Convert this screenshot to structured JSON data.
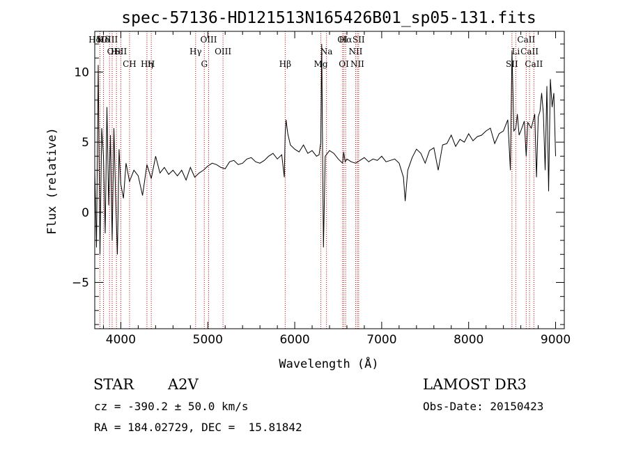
{
  "chart_data": {
    "type": "line",
    "title": "spec-57136-HD121513N165426B01_sp05-131.fits",
    "xlabel": "Wavelength (Å)",
    "ylabel": "Flux (relative)",
    "xlim": [
      3700,
      9100
    ],
    "ylim": [
      -8.3,
      12.9
    ],
    "xticks": [
      4000,
      5000,
      6000,
      7000,
      8000,
      9000
    ],
    "yticks": [
      -5,
      0,
      5,
      10
    ],
    "grid": false,
    "series": [
      {
        "x": [
          3700,
          3720,
          3740,
          3760,
          3780,
          3800,
          3820,
          3840,
          3860,
          3880,
          3900,
          3920,
          3940,
          3960,
          3980,
          4000,
          4030,
          4060,
          4100,
          4150,
          4200,
          4250,
          4300,
          4350,
          4400,
          4450,
          4500,
          4550,
          4600,
          4650,
          4700,
          4750,
          4800,
          4850,
          4900,
          4950,
          5000,
          5050,
          5100,
          5150,
          5200,
          5250,
          5300,
          5350,
          5400,
          5450,
          5500,
          5550,
          5600,
          5650,
          5700,
          5750,
          5800,
          5850,
          5880,
          5890,
          5900,
          5920,
          5950,
          6000,
          6050,
          6100,
          6150,
          6200,
          6250,
          6280,
          6300,
          6310,
          6320,
          6330,
          6350,
          6400,
          6450,
          6500,
          6550,
          6563,
          6580,
          6600,
          6650,
          6700,
          6750,
          6800,
          6850,
          6900,
          6950,
          7000,
          7050,
          7100,
          7150,
          7200,
          7250,
          7270,
          7300,
          7350,
          7400,
          7450,
          7500,
          7550,
          7600,
          7650,
          7700,
          7750,
          7800,
          7850,
          7900,
          7950,
          8000,
          8050,
          8100,
          8150,
          8200,
          8250,
          8300,
          8350,
          8400,
          8450,
          8480,
          8498,
          8520,
          8542,
          8560,
          8580,
          8600,
          8640,
          8662,
          8680,
          8720,
          8760,
          8780,
          8800,
          8820,
          8840,
          8860,
          8880,
          8900,
          8920,
          8940,
          8960,
          8980,
          9000
        ],
        "y": [
          3.0,
          -2.5,
          10.5,
          -3.0,
          6.0,
          4.0,
          -1.5,
          7.5,
          0.5,
          5.5,
          -2.0,
          6.0,
          1.0,
          -3.0,
          4.5,
          2.0,
          1.0,
          3.5,
          2.2,
          3.0,
          2.6,
          1.2,
          3.4,
          2.4,
          4.0,
          2.8,
          3.2,
          2.7,
          3.0,
          2.6,
          3.0,
          2.3,
          3.2,
          2.5,
          2.8,
          3.0,
          3.3,
          3.5,
          3.4,
          3.2,
          3.1,
          3.6,
          3.7,
          3.4,
          3.5,
          3.8,
          3.9,
          3.6,
          3.5,
          3.7,
          4.0,
          4.2,
          3.8,
          4.1,
          2.5,
          5.5,
          6.6,
          5.6,
          4.8,
          4.5,
          4.3,
          4.8,
          4.2,
          4.4,
          4.0,
          4.1,
          5.0,
          12.0,
          4.5,
          -2.5,
          4.0,
          4.4,
          4.2,
          3.8,
          3.5,
          4.3,
          3.6,
          3.8,
          3.6,
          3.5,
          3.7,
          3.9,
          3.6,
          3.8,
          3.7,
          4.0,
          3.6,
          3.7,
          3.8,
          3.5,
          2.5,
          0.8,
          3.0,
          3.9,
          4.5,
          4.2,
          3.5,
          4.4,
          4.6,
          3.0,
          4.8,
          4.9,
          5.5,
          4.7,
          5.2,
          5.0,
          5.6,
          5.1,
          5.4,
          5.5,
          5.8,
          6.0,
          4.9,
          5.6,
          5.8,
          6.6,
          3.0,
          11.5,
          5.8,
          6.0,
          7.0,
          5.5,
          5.8,
          6.5,
          4.0,
          6.4,
          6.0,
          7.0,
          2.5,
          6.8,
          7.2,
          8.5,
          7.0,
          3.0,
          9.0,
          1.5,
          9.5,
          7.5,
          8.5,
          4.0
        ]
      }
    ]
  },
  "spectral_lines": [
    {
      "label": "Hδ",
      "x": 3700,
      "row": 0
    },
    {
      "label": "K",
      "x": 3760,
      "row": 0
    },
    {
      "label": "Hδ",
      "x": 3800,
      "row": 0
    },
    {
      "label": "OIII",
      "x": 3870,
      "row": 0
    },
    {
      "label": "OI",
      "x": 3900,
      "row": 1
    },
    {
      "label": "Hε",
      "x": 3950,
      "row": 1
    },
    {
      "label": "SII",
      "x": 4000,
      "row": 1
    },
    {
      "label": "CH",
      "x": 4100,
      "row": 2
    },
    {
      "label": "Hη",
      "x": 4300,
      "row": 2
    },
    {
      "label": "H",
      "x": 4350,
      "row": 2
    },
    {
      "label": "Hγ",
      "x": 4860,
      "row": 1
    },
    {
      "label": "G",
      "x": 4960,
      "row": 2
    },
    {
      "label": "OIII",
      "x": 5010,
      "row": 0
    },
    {
      "label": "OIII",
      "x": 5175,
      "row": 1
    },
    {
      "label": "Hβ",
      "x": 5890,
      "row": 2
    },
    {
      "label": "Mg",
      "x": 6300,
      "row": 2
    },
    {
      "label": "Na",
      "x": 6365,
      "row": 1
    },
    {
      "label": "OI",
      "x": 6550,
      "row": 0
    },
    {
      "label": "OI",
      "x": 6565,
      "row": 2
    },
    {
      "label": "Hα",
      "x": 6585,
      "row": 0
    },
    {
      "label": "NII",
      "x": 6700,
      "row": 1
    },
    {
      "label": "NII",
      "x": 6720,
      "row": 2
    },
    {
      "label": "SII",
      "x": 6735,
      "row": 0
    },
    {
      "label": "SII",
      "x": 8498,
      "row": 2
    },
    {
      "label": "Li",
      "x": 8542,
      "row": 1
    },
    {
      "label": "CaII",
      "x": 8662,
      "row": 0
    },
    {
      "label": "CaII",
      "x": 8700,
      "row": 1
    },
    {
      "label": "CaII",
      "x": 8750,
      "row": 2
    }
  ],
  "info": {
    "object_type": "STAR",
    "subclass": "A2V",
    "survey": "LAMOST DR3",
    "redshift": "cz = -390.2 ± 50.0 km/s",
    "obs_date": "Obs-Date: 20150423",
    "coords": "RA = 184.02729, DEC =  15.81842"
  },
  "colors": {
    "spectrum": "#000000",
    "line_marker": "#cc0000",
    "axes": "#000000"
  }
}
